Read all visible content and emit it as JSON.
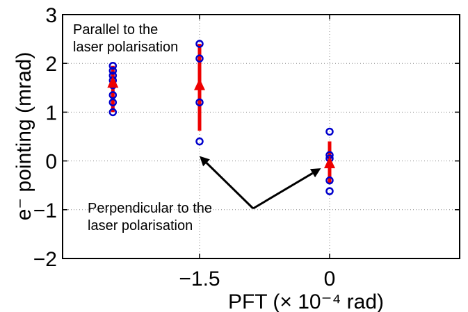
{
  "chart_data": {
    "type": "scatter",
    "xlabel": "PFT (× 10⁻⁴ rad)",
    "ylabel": "e⁻ pointing (mrad)",
    "xlim": [
      -3.08,
      1.5
    ],
    "ylim": [
      -2,
      3
    ],
    "xticks": [
      -1.5,
      0
    ],
    "xtick_labels": [
      "−1.5",
      "0"
    ],
    "yticks": [
      -2,
      -1,
      0,
      1,
      2,
      3
    ],
    "ytick_labels": [
      "−2",
      "−1",
      "0",
      "1",
      "2",
      "3"
    ],
    "grid": true,
    "colors": {
      "points": "#0000cc",
      "mean": "#ee0000",
      "arrow": "#000000"
    },
    "groups": [
      {
        "x": -2.5,
        "points": [
          1.0,
          1.2,
          1.35,
          1.55,
          1.65,
          1.75,
          1.85,
          1.95
        ],
        "mean": 1.6,
        "range": [
          1.0,
          1.95
        ]
      },
      {
        "x": -1.5,
        "points": [
          0.4,
          1.2,
          2.1,
          2.4
        ],
        "mean": 1.55,
        "range": [
          0.62,
          2.4
        ]
      },
      {
        "x": 0.0,
        "points": [
          -0.62,
          -0.4,
          0.05,
          0.12,
          0.6
        ],
        "mean": -0.05,
        "range": [
          -0.45,
          0.4
        ]
      }
    ],
    "annotations": [
      {
        "text_lines": [
          "Parallel to the",
          "laser polarisation"
        ]
      },
      {
        "text_lines": [
          "Perpendicular to the",
          "laser polarisation"
        ],
        "arrows_to": [
          {
            "x": -1.5,
            "y": 0.1
          },
          {
            "x": -0.1,
            "y": -0.15
          }
        ]
      }
    ]
  }
}
